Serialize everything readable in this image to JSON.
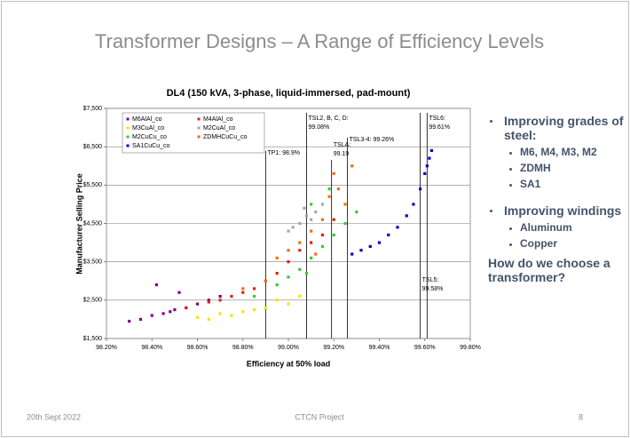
{
  "slide": {
    "title": "Transformer Designs – A Range of Efficiency Levels",
    "footer": {
      "date": "20th Sept 2022",
      "center": "CTCN Project",
      "page": "8"
    }
  },
  "bullets": [
    {
      "text": "Improving grades of steel:",
      "items": [
        "M6, M4, M3, M2",
        "ZDMH",
        "SA1"
      ]
    },
    {
      "text": "Improving windings",
      "items": [
        "Aluminum",
        "Copper"
      ]
    }
  ],
  "question": "How do we choose a transformer?",
  "chart_data": {
    "type": "scatter",
    "title": "DL4 (150 kVA, 3-phase, liquid-immersed, pad-mount)",
    "x_label": "Efficiency at 50% load",
    "y_label": "Manufacturer Selling Price",
    "xlim": [
      98.2,
      99.8
    ],
    "xticks": [
      {
        "value": 98.2,
        "label": "98.20%"
      },
      {
        "value": 98.4,
        "label": "98.40%"
      },
      {
        "value": 98.6,
        "label": "98.60%"
      },
      {
        "value": 98.8,
        "label": "98.80%"
      },
      {
        "value": 99.0,
        "label": "99.00%"
      },
      {
        "value": 99.2,
        "label": "99.20%"
      },
      {
        "value": 99.4,
        "label": "99.40%"
      },
      {
        "value": 99.6,
        "label": "99.60%"
      },
      {
        "value": 99.8,
        "label": "99.80%"
      }
    ],
    "ylim": [
      1500,
      7500
    ],
    "yticks": [
      {
        "value": 1500,
        "label": "$1,500"
      },
      {
        "value": 2500,
        "label": "$2,500"
      },
      {
        "value": 3500,
        "label": "$3,500"
      },
      {
        "value": 4500,
        "label": "$4,500"
      },
      {
        "value": 5500,
        "label": "$5,500"
      },
      {
        "value": 6500,
        "label": "$6,500"
      },
      {
        "value": 7500,
        "label": "$7,500"
      }
    ],
    "grid": "y",
    "legend": "top-left",
    "series": [
      {
        "name": "M6AlAl_co",
        "color": "#800080",
        "x": [
          98.3,
          98.35,
          98.4,
          98.45,
          98.5,
          98.55,
          98.6,
          98.65,
          98.42,
          98.52,
          98.7,
          98.48
        ],
        "values": [
          1950,
          2000,
          2100,
          2150,
          2250,
          2300,
          2400,
          2500,
          2900,
          2700,
          2600,
          2200
        ]
      },
      {
        "name": "M4AlAl_co",
        "color": "#e0201b",
        "x": [
          98.55,
          98.65,
          98.75,
          98.85,
          98.9,
          98.95,
          99.0,
          99.05,
          99.1,
          98.8,
          98.7,
          99.15,
          99.2
        ],
        "values": [
          2300,
          2450,
          2600,
          2800,
          3000,
          3200,
          3500,
          3800,
          4000,
          2700,
          2500,
          4200,
          4600
        ]
      },
      {
        "name": "M3CuAl_co",
        "color": "#f2e600",
        "x": [
          98.6,
          98.7,
          98.8,
          98.9,
          99.0,
          98.75,
          98.85,
          98.95,
          99.05,
          98.65
        ],
        "values": [
          2050,
          2150,
          2200,
          2300,
          2400,
          2100,
          2250,
          2500,
          2600,
          2000
        ]
      },
      {
        "name": "M2CuAl_co",
        "color": "#a6a6a6",
        "x": [
          99.0,
          99.05,
          99.08,
          99.1,
          99.12,
          99.15,
          99.02,
          99.07
        ],
        "values": [
          4300,
          4500,
          4700,
          4600,
          4800,
          5000,
          4400,
          4900
        ]
      },
      {
        "name": "M2CuCu_co",
        "color": "#33cc33",
        "x": [
          98.85,
          98.95,
          99.0,
          99.05,
          99.1,
          99.15,
          99.2,
          99.25,
          99.3,
          99.1,
          99.18,
          99.08
        ],
        "values": [
          2600,
          2900,
          3100,
          3300,
          3600,
          3900,
          4200,
          4500,
          4800,
          5000,
          5400,
          3200
        ]
      },
      {
        "name": "ZDMHCuCu_co",
        "color": "#f07010",
        "x": [
          98.8,
          98.9,
          98.95,
          99.0,
          99.05,
          99.1,
          99.15,
          99.18,
          99.2,
          99.22,
          99.25,
          99.12,
          99.28
        ],
        "values": [
          2800,
          3000,
          3600,
          3800,
          4000,
          4300,
          4600,
          5200,
          5800,
          5400,
          5000,
          3700,
          6000
        ]
      },
      {
        "name": "SA1CuCu_co",
        "color": "#0000cc",
        "x": [
          99.28,
          99.32,
          99.36,
          99.4,
          99.44,
          99.48,
          99.52,
          99.55,
          99.58,
          99.6,
          99.61,
          99.62,
          99.63
        ],
        "values": [
          3700,
          3800,
          3900,
          4000,
          4200,
          4400,
          4700,
          5000,
          5400,
          5800,
          6000,
          6200,
          6400
        ]
      }
    ],
    "annotations": [
      {
        "lines": [
          "TP1: 98.9%"
        ],
        "x": 98.9
      },
      {
        "lines": [
          "TSL2, B, C, D:",
          "99.08%"
        ],
        "x": 99.08
      },
      {
        "lines": [
          "TSLA:",
          "99.19"
        ],
        "x": 99.19
      },
      {
        "lines": [
          "TSL3-4: 99.26%"
        ],
        "x": 99.26
      },
      {
        "lines": [
          "TSL5:",
          "99.58%"
        ],
        "x": 99.58
      },
      {
        "lines": [
          "TSL6:",
          "99.61%"
        ],
        "x": 99.61
      }
    ]
  }
}
